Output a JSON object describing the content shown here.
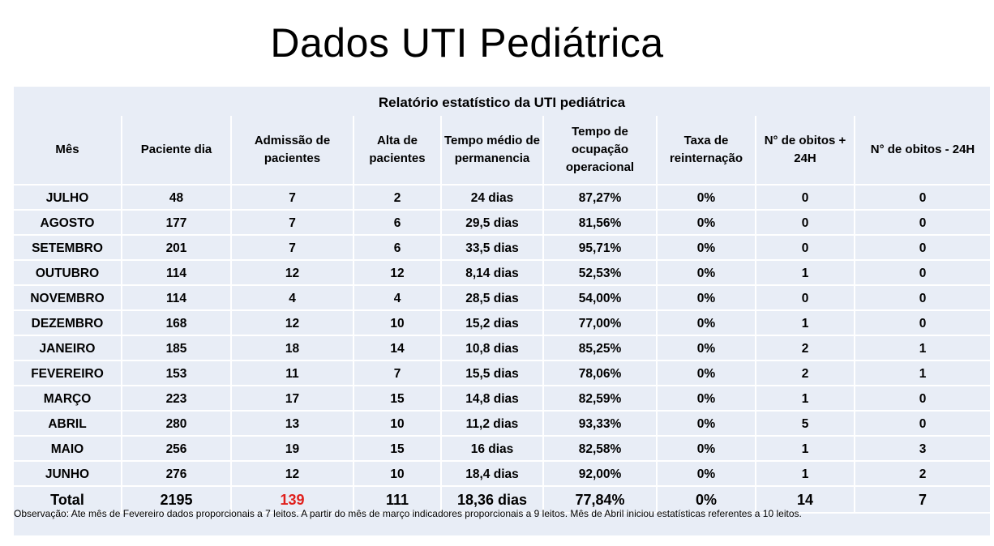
{
  "slide": {
    "title": "Dados UTI Pediátrica"
  },
  "table": {
    "caption": "Relatório estatístico da UTI pediátrica",
    "headers": [
      "Mês",
      "Paciente dia",
      "Admissão de pacientes",
      "Alta de pacientes",
      "Tempo médio de permanencia",
      "Tempo de ocupação operacional",
      "Taxa de reinternação",
      "N° de obitos + 24H",
      "N° de obitos - 24H"
    ],
    "rows": [
      [
        "JULHO",
        "48",
        "7",
        "2",
        "24 dias",
        "87,27%",
        "0%",
        "0",
        "0"
      ],
      [
        "AGOSTO",
        "177",
        "7",
        "6",
        "29,5 dias",
        "81,56%",
        "0%",
        "0",
        "0"
      ],
      [
        "SETEMBRO",
        "201",
        "7",
        "6",
        "33,5 dias",
        "95,71%",
        "0%",
        "0",
        "0"
      ],
      [
        "OUTUBRO",
        "114",
        "12",
        "12",
        "8,14 dias",
        "52,53%",
        "0%",
        "1",
        "0"
      ],
      [
        "NOVEMBRO",
        "114",
        "4",
        "4",
        "28,5 dias",
        "54,00%",
        "0%",
        "0",
        "0"
      ],
      [
        "DEZEMBRO",
        "168",
        "12",
        "10",
        "15,2 dias",
        "77,00%",
        "0%",
        "1",
        "0"
      ],
      [
        "JANEIRO",
        "185",
        "18",
        "14",
        "10,8 dias",
        "85,25%",
        "0%",
        "2",
        "1"
      ],
      [
        "FEVEREIRO",
        "153",
        "11",
        "7",
        "15,5 dias",
        "78,06%",
        "0%",
        "2",
        "1"
      ],
      [
        "MARÇO",
        "223",
        "17",
        "15",
        "14,8 dias",
        "82,59%",
        "0%",
        "1",
        "0"
      ],
      [
        "ABRIL",
        "280",
        "13",
        "10",
        "11,2 dias",
        "93,33%",
        "0%",
        "5",
        "0"
      ],
      [
        "MAIO",
        "256",
        "19",
        "15",
        "16 dias",
        "82,58%",
        "0%",
        "1",
        "3"
      ],
      [
        "JUNHO",
        "276",
        "12",
        "10",
        "18,4 dias",
        "92,00%",
        "0%",
        "1",
        "2"
      ]
    ],
    "total": [
      "Total",
      "2195",
      "139",
      "111",
      "18,36 dias",
      "77,84%",
      "0%",
      "14",
      "7"
    ],
    "note": "Observação: Ate mês de Fevereiro dados proporcionais a 7 leitos. A partir do mês de março indicadores proporcionais a 9 leitos. Mês de Abril iniciou estatísticas referentes a 10 leitos."
  },
  "colors": {
    "panel_background": "#e8edf6",
    "grid_lines": "#ffffff",
    "highlight_red": "#e0201c"
  }
}
